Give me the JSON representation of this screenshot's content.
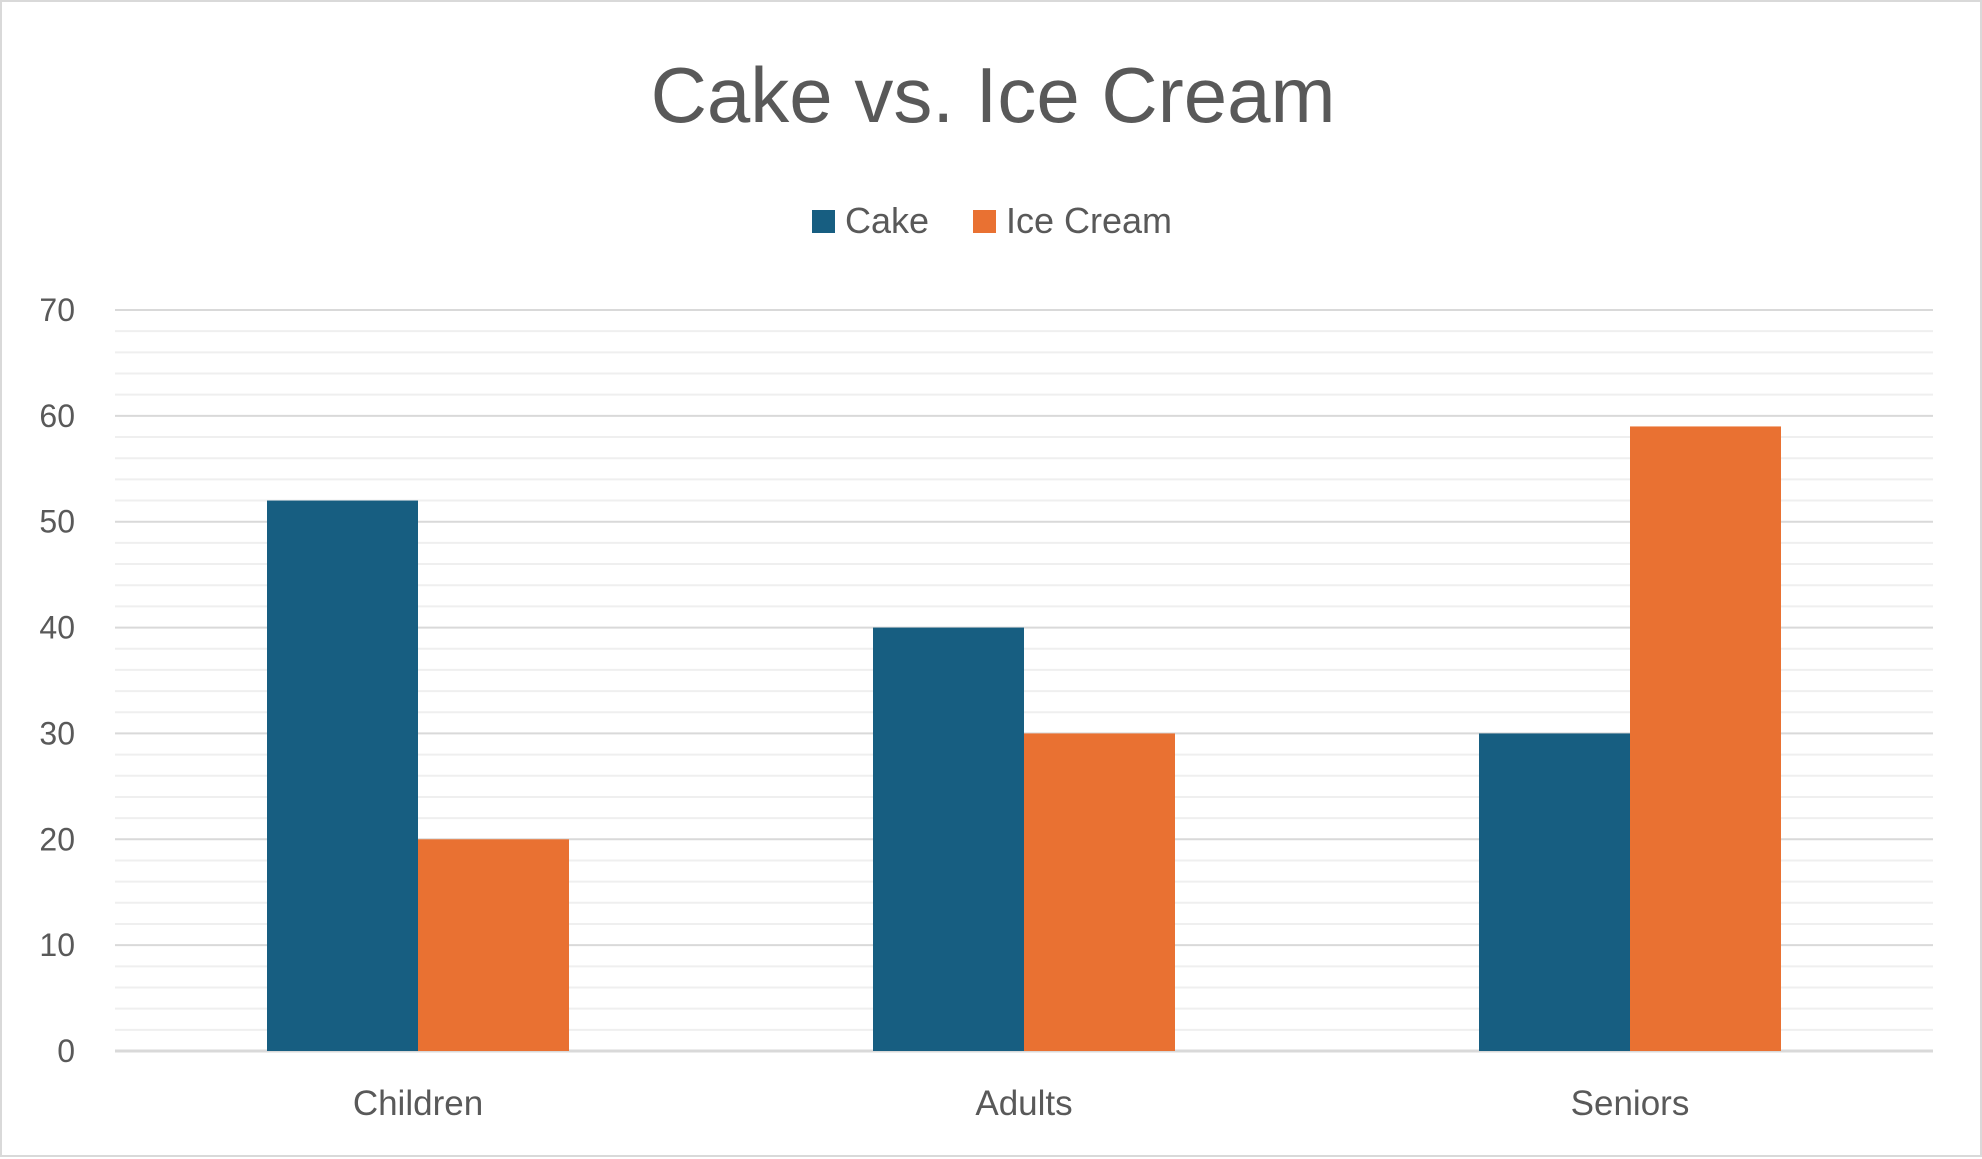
{
  "chart_data": {
    "type": "bar",
    "title": "Cake vs. Ice Cream",
    "xlabel": "",
    "ylabel": "",
    "categories": [
      "Children",
      "Adults",
      "Seniors"
    ],
    "series": [
      {
        "name": "Cake",
        "color": "#175E81",
        "values": [
          52,
          40,
          30
        ]
      },
      {
        "name": "Ice Cream",
        "color": "#E97132",
        "values": [
          20,
          30,
          59
        ]
      }
    ],
    "ylim": [
      0,
      70
    ],
    "yticks": [
      0,
      10,
      20,
      30,
      40,
      50,
      60,
      70
    ],
    "minor_ticks_per_major": 5,
    "grid": true,
    "legend": "top-center",
    "colors": {
      "major_grid": "#d9d9d9",
      "minor_grid": "#efefef",
      "text": "#595959",
      "border": "#d9d9d9"
    }
  }
}
